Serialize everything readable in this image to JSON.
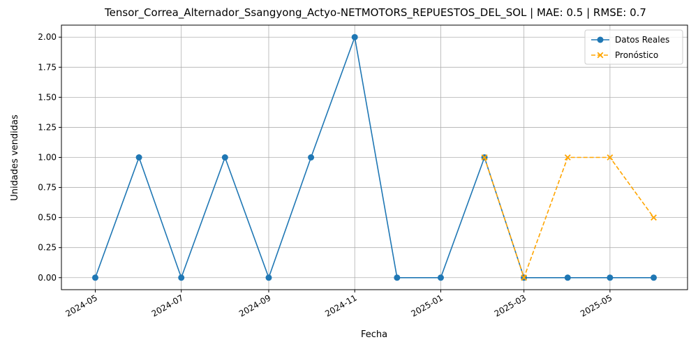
{
  "chart_data": {
    "type": "line",
    "title": "Tensor_Correa_Alternador_Ssangyong_Actyo-NETMOTORS_REPUESTOS_DEL_SOL | MAE: 0.5 | RMSE: 0.7",
    "xlabel": "Fecha",
    "ylabel": "Unidades vendidas",
    "x_ticks": [
      "2024-05",
      "2024-07",
      "2024-09",
      "2024-11",
      "2025-01",
      "2025-03",
      "2025-05"
    ],
    "y_ticks": [
      "0.00",
      "0.25",
      "0.50",
      "0.75",
      "1.00",
      "1.25",
      "1.50",
      "1.75",
      "2.00"
    ],
    "xlim": [
      "2024-04-07",
      "2025-06-25"
    ],
    "ylim": [
      -0.1,
      2.1
    ],
    "grid": true,
    "legend_position": "top-right",
    "series": [
      {
        "name": "Datos Reales",
        "color": "#1f77b4",
        "marker": "circle",
        "line_style": "solid",
        "x": [
          "2024-05-01",
          "2024-06-01",
          "2024-07-01",
          "2024-08-01",
          "2024-09-01",
          "2024-10-01",
          "2024-11-01",
          "2024-12-01",
          "2025-01-01",
          "2025-02-01",
          "2025-03-01",
          "2025-04-01",
          "2025-05-01",
          "2025-06-01"
        ],
        "values": [
          0,
          1,
          0,
          1,
          0,
          1,
          2,
          0,
          0,
          1,
          0,
          0,
          0,
          0
        ]
      },
      {
        "name": "Pronóstico",
        "color": "#ffa500",
        "marker": "x",
        "line_style": "dashed",
        "x": [
          "2025-02-01",
          "2025-03-01",
          "2025-04-01",
          "2025-05-01",
          "2025-06-01"
        ],
        "values": [
          1,
          0,
          1,
          1,
          0.5
        ]
      }
    ]
  }
}
